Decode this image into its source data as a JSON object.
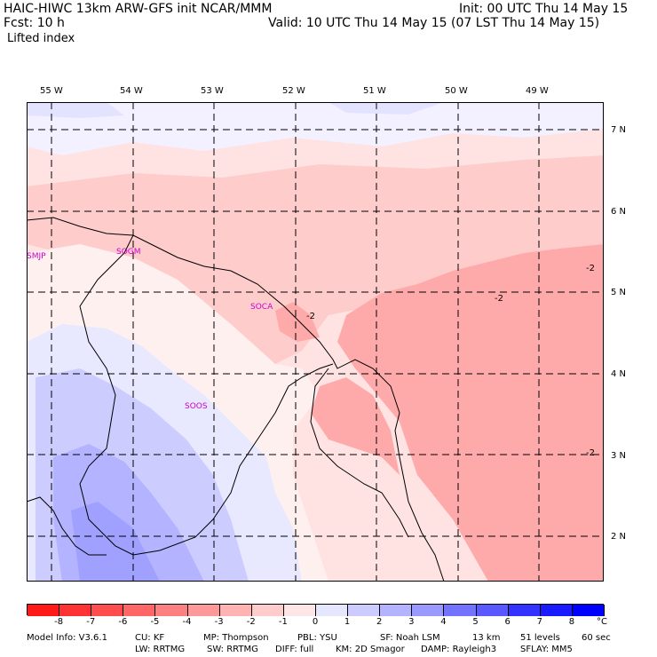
{
  "header": {
    "model_line": "HAIC-HIWC 13km ARW-GFS init    NCAR/MMM",
    "init_line": "Init: 00 UTC Thu 14 May 15",
    "fcst_line": "Fcst:    10 h",
    "valid_line": "Valid: 10 UTC Thu 14 May 15 (07 LST Thu 14 May 15)",
    "field_name": "Lifted index"
  },
  "map": {
    "lon_labels": [
      "55 W",
      "54 W",
      "53 W",
      "52 W",
      "51 W",
      "50 W",
      "49 W"
    ],
    "lat_labels": [
      "7 N",
      "6 N",
      "5 N",
      "4 N",
      "3 N",
      "2 N"
    ],
    "stations": [
      {
        "id": "SMJP",
        "name": "SMJP"
      },
      {
        "id": "SOGM",
        "name": "SOGM"
      },
      {
        "id": "SOCA",
        "name": "SOCA"
      },
      {
        "id": "SOOS",
        "name": "SOOS"
      }
    ],
    "contour_labels": [
      "-2",
      "-2",
      "-2",
      "-2"
    ]
  },
  "legend": {
    "unit": "°C",
    "ticks": [
      "-8",
      "-7",
      "-6",
      "-5",
      "-4",
      "-3",
      "-2",
      "-1",
      "0",
      "1",
      "2",
      "3",
      "4",
      "5",
      "6",
      "7",
      "8"
    ],
    "colors": [
      "#ff1a1a",
      "#ff3333",
      "#ff4d4d",
      "#ff6666",
      "#ff8080",
      "#ff9999",
      "#ffb3b3",
      "#ffcccc",
      "#ffe6e6",
      "#e6e6ff",
      "#ccccff",
      "#b3b3ff",
      "#9999ff",
      "#7373ff",
      "#5959ff",
      "#3333ff",
      "#1a1aff",
      "#0000ff"
    ]
  },
  "footer": {
    "line1": [
      "Model Info: V3.6.1",
      "CU: KF",
      "MP: Thompson",
      "PBL: YSU",
      "SF: Noah LSM",
      "13 km",
      "51 levels",
      "60 sec"
    ],
    "line2": [
      "LW: RRTMG",
      "SW: RRTMG",
      "DIFF: full",
      "KM: 2D Smagor",
      "DAMP: Rayleigh3",
      "SFLAY: MM5"
    ]
  }
}
